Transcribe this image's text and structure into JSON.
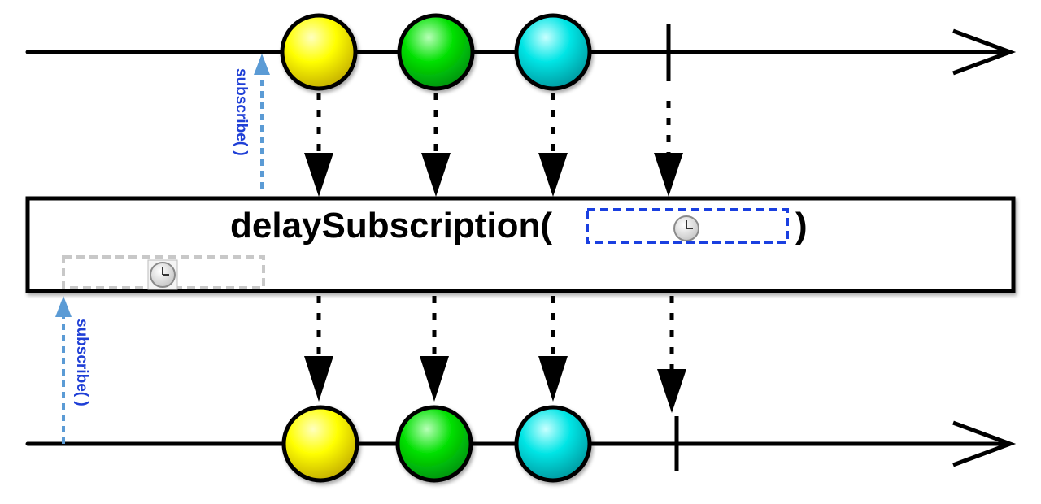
{
  "operator": {
    "name": "delaySubscription(",
    "close": ")"
  },
  "subscribe_label": "subscribe( )",
  "colors": {
    "yellow": "#ffff00",
    "green": "#00e000",
    "cyan": "#00e5e5",
    "subscribe_text": "#1f3fd6",
    "subscribe_arrow": "#5b9bd5",
    "delay_box_top": "#1a3fe0",
    "delay_box_bottom": "#c8c8c8"
  },
  "source_items": [
    "yellow",
    "green",
    "cyan"
  ],
  "icons": {
    "clock": "clock-icon"
  }
}
